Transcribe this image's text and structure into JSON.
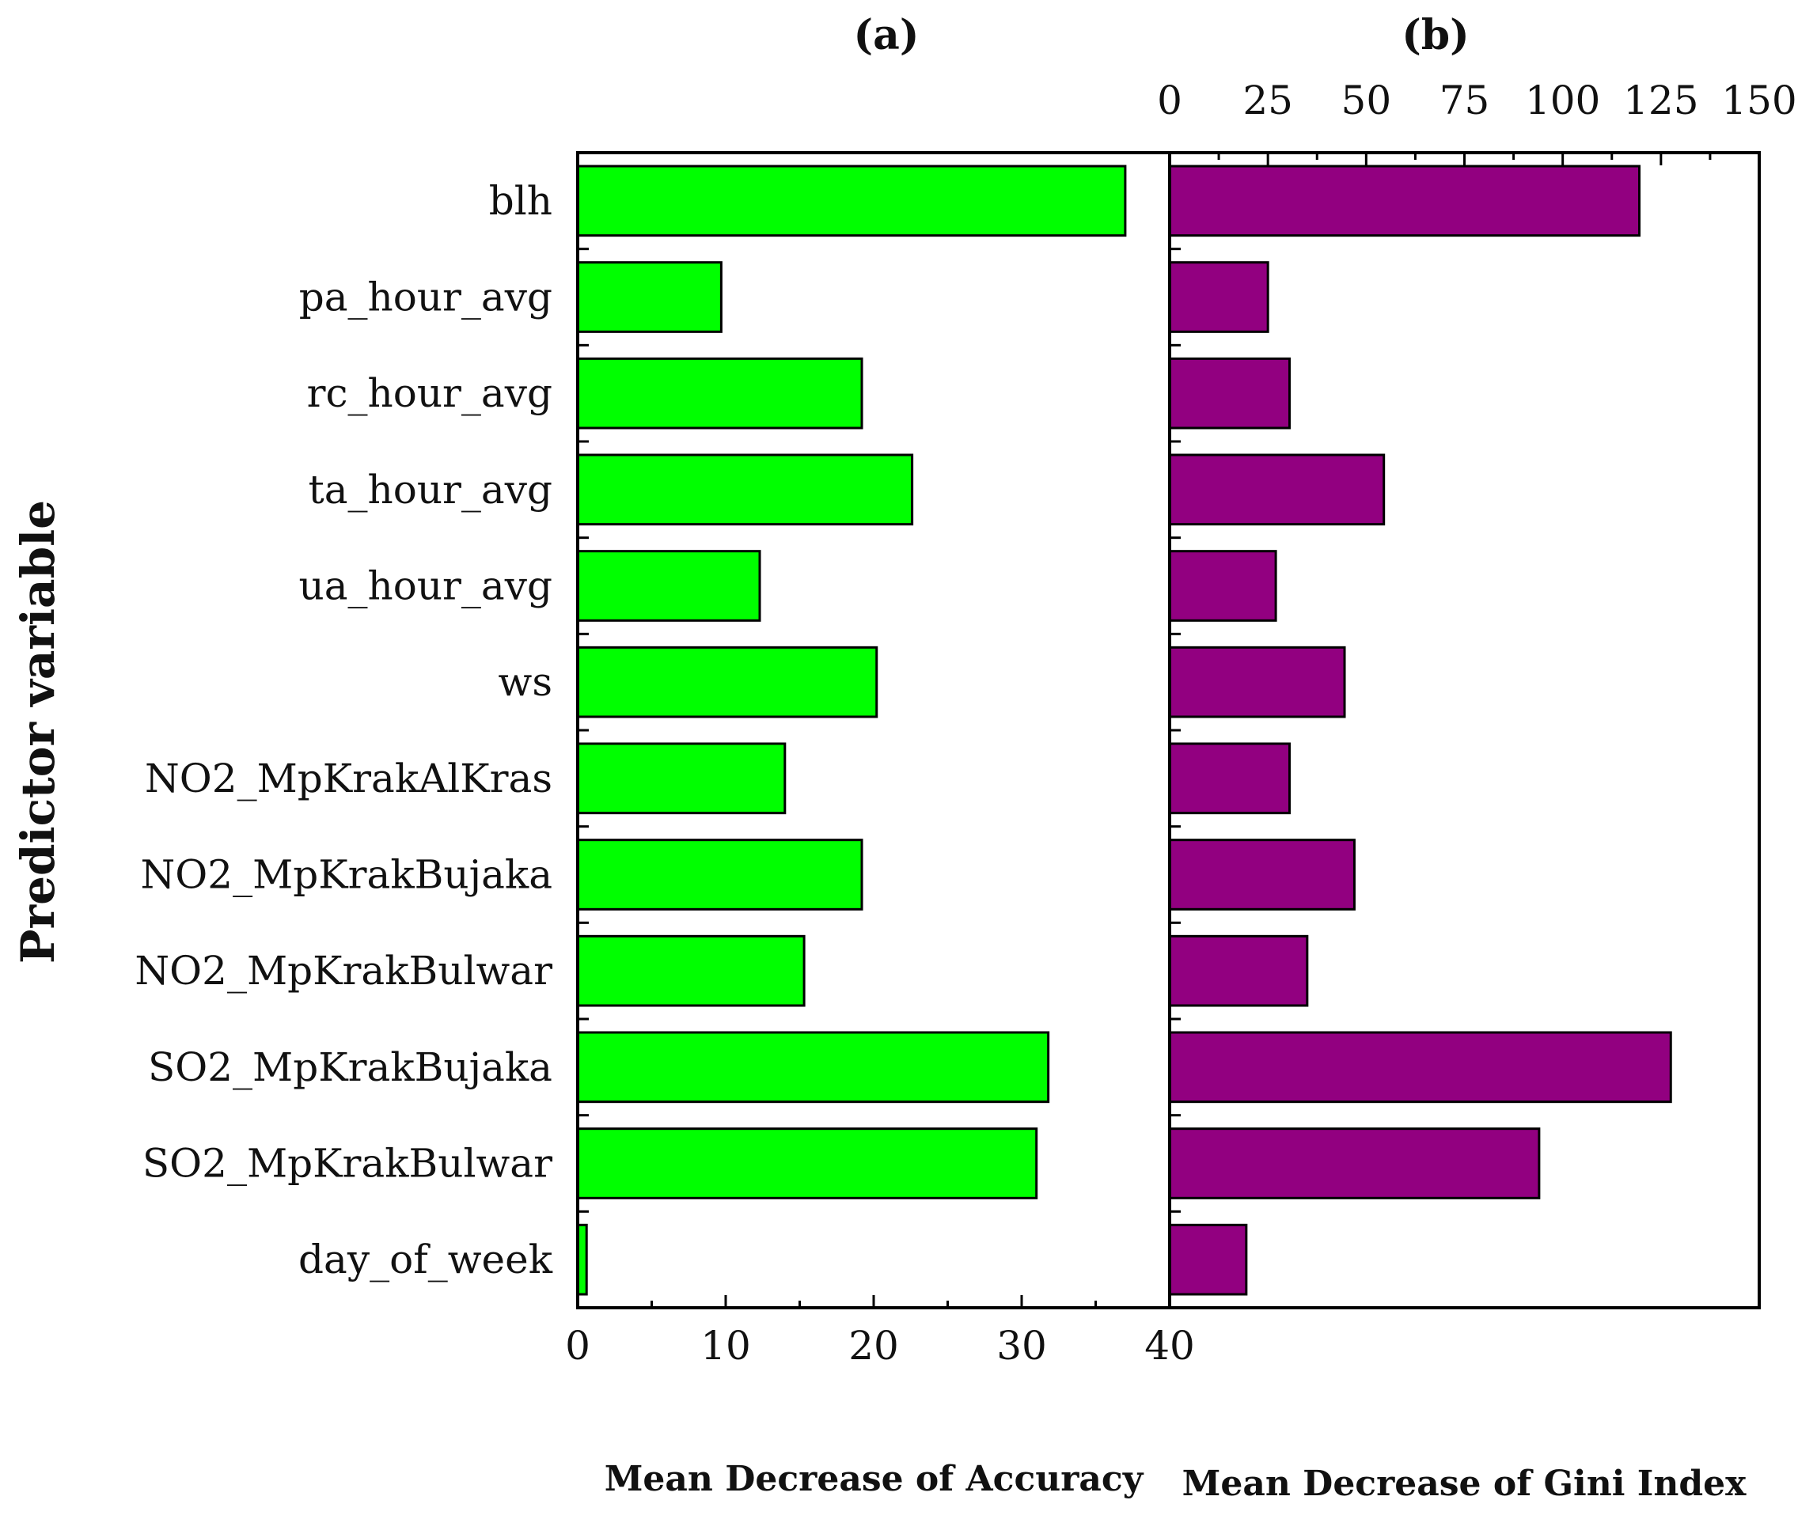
{
  "chart_data": {
    "type": "bar",
    "orientation": "horizontal",
    "ylabel": "Predictor variable",
    "categories": [
      "blh",
      "pa_hour_avg",
      "rc_hour_avg",
      "ta_hour_avg",
      "ua_hour_avg",
      "ws",
      "NO2_MpKrakAlKras",
      "NO2_MpKrakBujaka",
      "NO2_MpKrakBulwar",
      "SO2_MpKrakBujaka",
      "SO2_MpKrakBulwar",
      "day_of_week"
    ],
    "panels": [
      {
        "title": "(a)",
        "xlabel": "Mean Decrease of Accuracy",
        "axis_position": "bottom",
        "xlim": [
          0,
          40
        ],
        "ticks": [
          0,
          10,
          20,
          30,
          40
        ],
        "color": "#00ff00",
        "values": [
          37.0,
          9.7,
          19.2,
          22.6,
          12.3,
          20.2,
          14.0,
          19.2,
          15.3,
          31.8,
          31.0,
          0.6
        ]
      },
      {
        "title": "(b)",
        "xlabel": "Mean Decrease of Gini Index",
        "axis_position": "top",
        "xlim": [
          0,
          150
        ],
        "ticks": [
          0,
          25,
          50,
          75,
          100,
          125,
          150
        ],
        "color": "#920080",
        "values": [
          119.5,
          25.0,
          30.5,
          54.5,
          27.0,
          44.5,
          30.5,
          47.0,
          35.0,
          127.5,
          94.0,
          19.5
        ]
      }
    ]
  }
}
